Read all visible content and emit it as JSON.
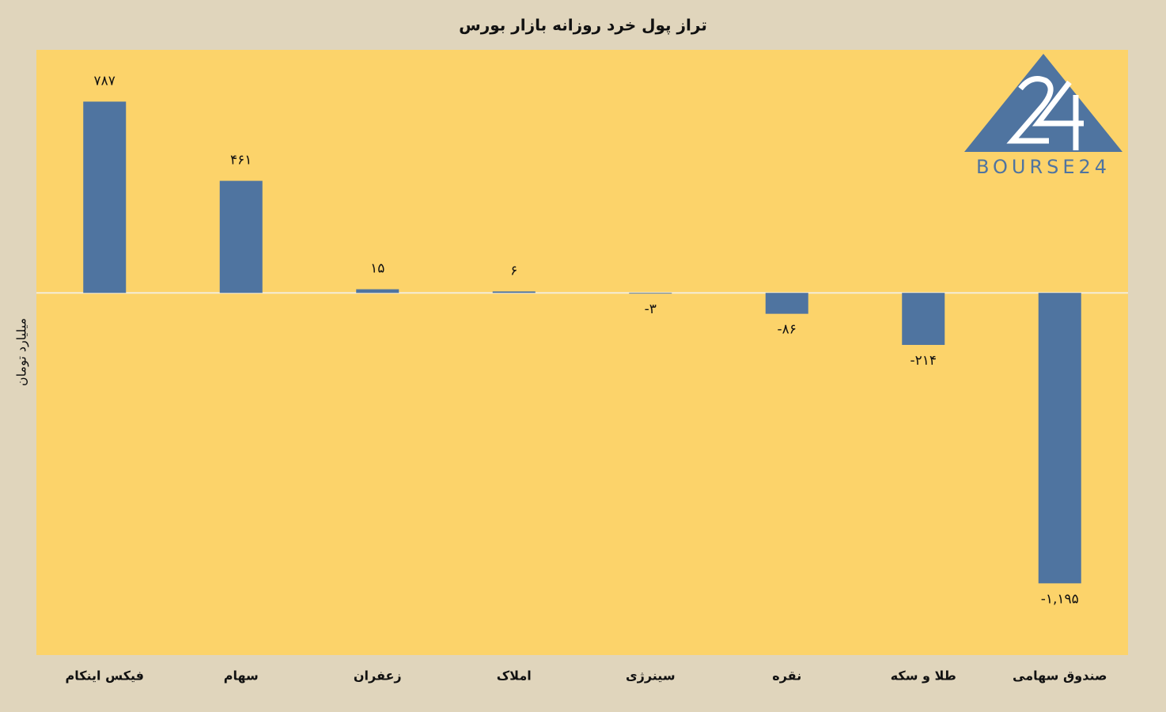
{
  "chart_data": {
    "type": "bar",
    "title": "تراز پول خرد روزانه بازار بورس",
    "y_label": "میلیارد تومان",
    "logo": "BOURSE24",
    "categories": [
      "فیکس اینکام",
      "سهام",
      "زعفران",
      "املاک",
      "سینرژی",
      "نقره",
      "طلا و سکه",
      "صندوق سهامی"
    ],
    "values": [
      787,
      461,
      15,
      6,
      -3,
      -86,
      -214,
      -1195
    ],
    "value_labels": [
      "۷۸۷",
      "۴۶۱",
      "۱۵",
      "۶",
      "-۳",
      "-۸۶",
      "-۲۱۴",
      "-۱,۱۹۵"
    ],
    "color": "#4f74a0",
    "ylim": [
      -1490,
      1000
    ]
  }
}
